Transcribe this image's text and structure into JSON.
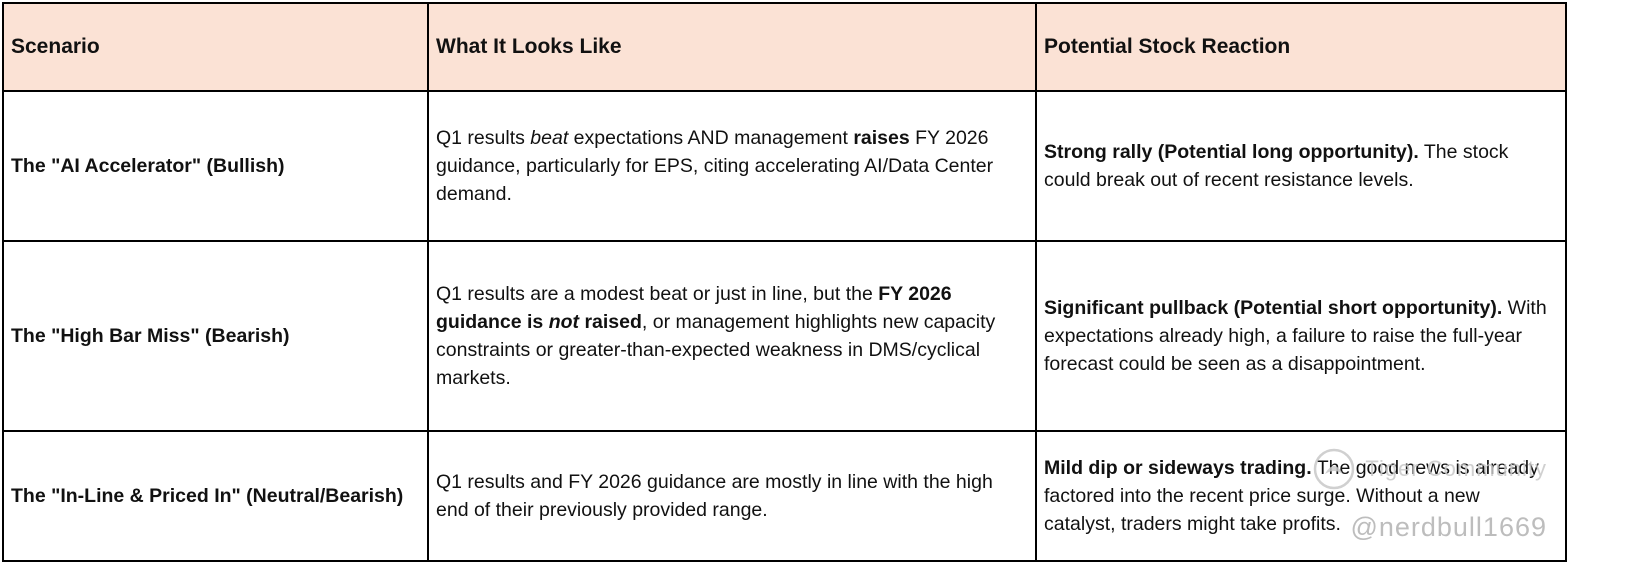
{
  "table": {
    "headers": [
      "Scenario",
      "What It Looks Like",
      "Potential Stock Reaction"
    ],
    "rows": [
      {
        "scenario": "The \"AI Accelerator\" (Bullish)",
        "what_it_looks_like": [
          {
            "text": "Q1 results "
          },
          {
            "text": "beat ",
            "italic": true
          },
          {
            "text": " expectations AND management "
          },
          {
            "text": "raises",
            "bold": true
          },
          {
            "text": " FY 2026 guidance, particularly for EPS, citing accelerating AI/Data Center demand."
          }
        ],
        "reaction": [
          {
            "text": "Strong rally (Potential long opportunity).",
            "bold": true
          },
          {
            "text": " The stock could break out of recent resistance levels."
          }
        ]
      },
      {
        "scenario": "The \"High Bar Miss\" (Bearish)",
        "what_it_looks_like": [
          {
            "text": "Q1 results are a modest beat or just in line, but the "
          },
          {
            "text": "FY 2026 guidance is ",
            "bold": true
          },
          {
            "text": "not ",
            "bold": true,
            "italic": true
          },
          {
            "text": "raised",
            "bold": true
          },
          {
            "text": ", or management highlights new capacity constraints or greater-than-expected weakness in DMS/cyclical markets."
          }
        ],
        "reaction": [
          {
            "text": "Significant pullback (Potential short opportunity).",
            "bold": true
          },
          {
            "text": " With expectations already high, a failure to raise the full-year forecast could be seen as a disappointment."
          }
        ]
      },
      {
        "scenario": "The \"In-Line & Priced In\" (Neutral/Bearish)",
        "what_it_looks_like": [
          {
            "text": "Q1 results and FY 2026 guidance are mostly in line with the high end of their previously provided range."
          }
        ],
        "reaction": [
          {
            "text": "Mild dip or sideways trading.",
            "bold": true
          },
          {
            "text": " The good news is already factored into the recent price surge. Without a new catalyst, traders might take profits."
          }
        ]
      }
    ]
  },
  "watermark": {
    "community": "Tiger Community",
    "handle": "@nerdbull1669"
  },
  "colors": {
    "header_bg": "#fbe2d5",
    "border": "#000000",
    "watermark_gray": "#c3c3c3"
  }
}
